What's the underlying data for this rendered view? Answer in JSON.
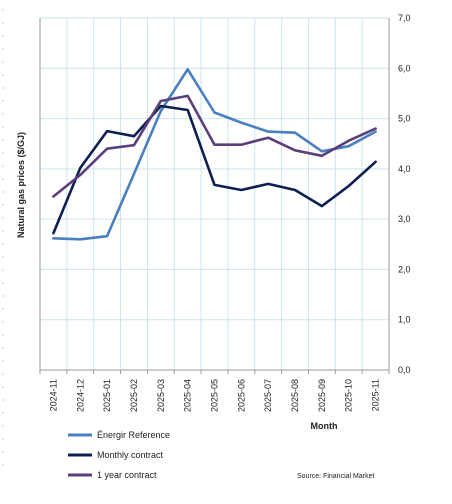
{
  "chart_data": {
    "type": "line",
    "xlabel": "Month",
    "ylabel": "Natural gas prices ($/GJ)",
    "categories": [
      "2024-11",
      "2024-12",
      "2025-01",
      "2025-02",
      "2025-03",
      "2025-04",
      "2025-05",
      "2025-06",
      "2025-07",
      "2025-08",
      "2025-09",
      "2025-10",
      "2025-11"
    ],
    "y_ticks": [
      "0,0",
      "1,0",
      "2,0",
      "3,0",
      "4,0",
      "5,0",
      "6,0",
      "7,0"
    ],
    "ylim": [
      0,
      7
    ],
    "y_axis_side": "right",
    "grid": true,
    "legend_position": "bottom-left",
    "series": [
      {
        "name": "Énergir Reference",
        "color": "#4a7fc0",
        "values": [
          2.62,
          2.6,
          2.66,
          3.9,
          5.15,
          5.98,
          5.12,
          4.92,
          4.74,
          4.72,
          4.35,
          4.45,
          4.74
        ]
      },
      {
        "name": "Monthly contract",
        "color": "#0d1f4f",
        "values": [
          2.72,
          4.02,
          4.75,
          4.65,
          5.25,
          5.17,
          3.68,
          3.58,
          3.7,
          3.58,
          3.26,
          3.66,
          4.14
        ]
      },
      {
        "name": "1 year contract",
        "color": "#5b3f7a",
        "values": [
          3.45,
          3.88,
          4.4,
          4.47,
          5.35,
          5.45,
          4.48,
          4.48,
          4.62,
          4.37,
          4.26,
          4.56,
          4.8
        ]
      }
    ],
    "source": "Source: Financial Market"
  }
}
